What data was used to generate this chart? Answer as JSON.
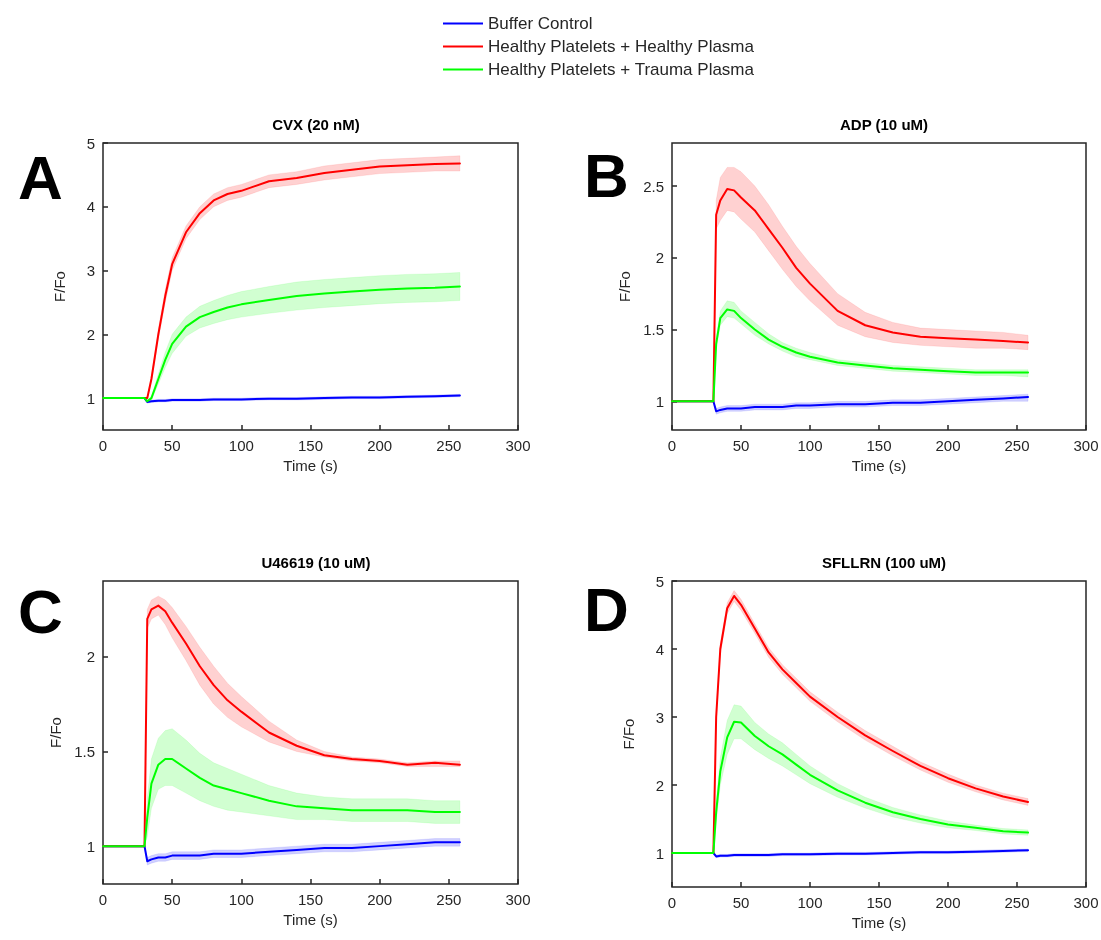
{
  "chart_data": [
    {
      "type": "line",
      "title": "CVX (20 nM)",
      "xlabel": "Time (s)",
      "ylabel": "F/Fo",
      "annotations": [
        "A"
      ],
      "legend": "top",
      "xlim": [
        0,
        300
      ],
      "xticks": [
        0,
        50,
        100,
        150,
        200,
        250,
        300
      ],
      "ylim": [
        0.5,
        5
      ],
      "yticks": [
        1,
        2,
        3,
        4,
        5
      ],
      "x": [
        0,
        30,
        32,
        35,
        40,
        45,
        50,
        60,
        70,
        80,
        90,
        100,
        120,
        140,
        160,
        180,
        200,
        220,
        240,
        258
      ],
      "series": [
        {
          "name": "Buffer Control",
          "color": "#0000ff",
          "values": [
            1,
            1,
            0.94,
            0.95,
            0.96,
            0.96,
            0.97,
            0.97,
            0.97,
            0.98,
            0.98,
            0.98,
            0.99,
            0.99,
            1.0,
            1.01,
            1.01,
            1.02,
            1.03,
            1.04
          ],
          "lower": [
            1,
            1,
            0.92,
            0.93,
            0.94,
            0.94,
            0.95,
            0.95,
            0.95,
            0.96,
            0.96,
            0.96,
            0.97,
            0.97,
            0.98,
            0.99,
            0.99,
            1.0,
            1.01,
            1.02
          ],
          "upper": [
            1,
            1,
            0.96,
            0.97,
            0.98,
            0.98,
            0.99,
            0.99,
            0.99,
            1.0,
            1.0,
            1.0,
            1.01,
            1.01,
            1.02,
            1.03,
            1.03,
            1.04,
            1.05,
            1.06
          ]
        },
        {
          "name": "Healthy Platelets + Healthy Plasma",
          "color": "#ff0000",
          "values": [
            1,
            1,
            1.0,
            1.3,
            2.0,
            2.6,
            3.1,
            3.6,
            3.9,
            4.1,
            4.2,
            4.25,
            4.4,
            4.45,
            4.53,
            4.58,
            4.63,
            4.65,
            4.67,
            4.68
          ],
          "lower": [
            1,
            1,
            0.98,
            1.25,
            1.92,
            2.5,
            3.0,
            3.5,
            3.8,
            4.0,
            4.1,
            4.15,
            4.3,
            4.35,
            4.42,
            4.47,
            4.52,
            4.54,
            4.56,
            4.56
          ],
          "upper": [
            1,
            1,
            1.02,
            1.35,
            2.08,
            2.7,
            3.2,
            3.7,
            4.0,
            4.2,
            4.3,
            4.35,
            4.5,
            4.55,
            4.64,
            4.69,
            4.74,
            4.76,
            4.78,
            4.8
          ]
        },
        {
          "name": "Healthy Platelets + Trauma Plasma",
          "color": "#00ff00",
          "values": [
            1,
            1,
            0.95,
            1.0,
            1.3,
            1.6,
            1.85,
            2.12,
            2.27,
            2.35,
            2.42,
            2.47,
            2.54,
            2.6,
            2.64,
            2.67,
            2.7,
            2.72,
            2.73,
            2.75
          ],
          "lower": [
            1,
            1,
            0.93,
            0.97,
            1.22,
            1.48,
            1.7,
            1.97,
            2.1,
            2.17,
            2.23,
            2.27,
            2.33,
            2.38,
            2.42,
            2.45,
            2.48,
            2.5,
            2.51,
            2.53
          ],
          "upper": [
            1,
            1,
            0.97,
            1.03,
            1.38,
            1.72,
            2.0,
            2.27,
            2.44,
            2.53,
            2.61,
            2.67,
            2.75,
            2.82,
            2.86,
            2.89,
            2.92,
            2.94,
            2.95,
            2.97
          ]
        }
      ]
    },
    {
      "type": "line",
      "title": "ADP (10 uM)",
      "xlabel": "Time (s)",
      "ylabel": "F/Fo",
      "annotations": [
        "B"
      ],
      "xlim": [
        0,
        300
      ],
      "xticks": [
        0,
        50,
        100,
        150,
        200,
        250,
        300
      ],
      "ylim": [
        0.8,
        2.8
      ],
      "yticks": [
        1,
        1.5,
        2,
        2.5
      ],
      "x": [
        0,
        30,
        32,
        35,
        40,
        45,
        50,
        60,
        70,
        80,
        90,
        100,
        120,
        140,
        160,
        180,
        200,
        220,
        240,
        258
      ],
      "series": [
        {
          "color": "#0000ff",
          "values": [
            1,
            1,
            0.93,
            0.94,
            0.95,
            0.95,
            0.95,
            0.96,
            0.96,
            0.96,
            0.97,
            0.97,
            0.98,
            0.98,
            0.99,
            0.99,
            1.0,
            1.01,
            1.02,
            1.03
          ],
          "lower": [
            1,
            1,
            0.91,
            0.92,
            0.93,
            0.93,
            0.93,
            0.94,
            0.94,
            0.94,
            0.95,
            0.95,
            0.96,
            0.96,
            0.97,
            0.97,
            0.98,
            0.99,
            1.0,
            1.0
          ],
          "upper": [
            1,
            1,
            0.95,
            0.96,
            0.97,
            0.97,
            0.97,
            0.98,
            0.98,
            0.98,
            0.99,
            0.99,
            1.0,
            1.0,
            1.01,
            1.01,
            1.02,
            1.03,
            1.04,
            1.05
          ]
        },
        {
          "color": "#ff0000",
          "values": [
            1,
            1,
            2.3,
            2.4,
            2.48,
            2.47,
            2.42,
            2.33,
            2.2,
            2.07,
            1.93,
            1.82,
            1.63,
            1.53,
            1.48,
            1.45,
            1.44,
            1.43,
            1.42,
            1.41
          ],
          "lower": [
            1,
            1,
            2.2,
            2.26,
            2.33,
            2.32,
            2.27,
            2.18,
            2.05,
            1.92,
            1.8,
            1.7,
            1.53,
            1.45,
            1.41,
            1.39,
            1.38,
            1.37,
            1.37,
            1.36
          ],
          "upper": [
            1,
            1,
            2.4,
            2.56,
            2.63,
            2.63,
            2.6,
            2.5,
            2.37,
            2.22,
            2.08,
            1.96,
            1.75,
            1.62,
            1.55,
            1.51,
            1.5,
            1.49,
            1.48,
            1.46
          ]
        },
        {
          "color": "#00ff00",
          "values": [
            1,
            1,
            1.4,
            1.58,
            1.64,
            1.63,
            1.58,
            1.5,
            1.43,
            1.38,
            1.34,
            1.31,
            1.27,
            1.25,
            1.23,
            1.22,
            1.21,
            1.2,
            1.2,
            1.2
          ],
          "lower": [
            1,
            1,
            1.36,
            1.53,
            1.59,
            1.58,
            1.54,
            1.46,
            1.4,
            1.35,
            1.31,
            1.29,
            1.25,
            1.23,
            1.21,
            1.2,
            1.19,
            1.18,
            1.18,
            1.17
          ],
          "upper": [
            1,
            1,
            1.44,
            1.63,
            1.7,
            1.69,
            1.63,
            1.55,
            1.47,
            1.41,
            1.37,
            1.34,
            1.29,
            1.27,
            1.25,
            1.24,
            1.23,
            1.22,
            1.22,
            1.22
          ]
        }
      ]
    },
    {
      "type": "line",
      "title": "U46619 (10 uM)",
      "xlabel": "Time (s)",
      "ylabel": "F/Fo",
      "annotations": [
        "C"
      ],
      "xlim": [
        0,
        300
      ],
      "xticks": [
        0,
        50,
        100,
        150,
        200,
        250,
        300
      ],
      "ylim": [
        0.8,
        2.4
      ],
      "yticks": [
        1,
        1.5,
        2
      ],
      "x": [
        0,
        30,
        32,
        35,
        40,
        45,
        50,
        60,
        70,
        80,
        90,
        100,
        120,
        140,
        160,
        180,
        200,
        220,
        240,
        258
      ],
      "series": [
        {
          "color": "#0000ff",
          "values": [
            1,
            1,
            0.92,
            0.93,
            0.94,
            0.94,
            0.95,
            0.95,
            0.95,
            0.96,
            0.96,
            0.96,
            0.97,
            0.98,
            0.99,
            0.99,
            1.0,
            1.01,
            1.02,
            1.02
          ],
          "lower": [
            1,
            1,
            0.9,
            0.91,
            0.92,
            0.92,
            0.93,
            0.93,
            0.93,
            0.94,
            0.94,
            0.94,
            0.95,
            0.96,
            0.97,
            0.97,
            0.98,
            0.99,
            1.0,
            1.0
          ],
          "upper": [
            1,
            1,
            0.94,
            0.95,
            0.96,
            0.96,
            0.97,
            0.97,
            0.97,
            0.98,
            0.98,
            0.98,
            0.99,
            1.0,
            1.01,
            1.01,
            1.02,
            1.03,
            1.04,
            1.04
          ]
        },
        {
          "color": "#ff0000",
          "values": [
            1,
            1,
            2.2,
            2.25,
            2.27,
            2.24,
            2.18,
            2.07,
            1.95,
            1.85,
            1.77,
            1.71,
            1.6,
            1.53,
            1.48,
            1.46,
            1.45,
            1.43,
            1.44,
            1.43
          ],
          "lower": [
            1,
            1,
            2.15,
            2.2,
            2.22,
            2.17,
            2.1,
            1.98,
            1.85,
            1.75,
            1.68,
            1.63,
            1.55,
            1.5,
            1.47,
            1.45,
            1.44,
            1.42,
            1.42,
            1.42
          ],
          "upper": [
            1,
            1,
            2.25,
            2.3,
            2.32,
            2.3,
            2.26,
            2.16,
            2.05,
            1.95,
            1.86,
            1.79,
            1.66,
            1.56,
            1.5,
            1.47,
            1.46,
            1.44,
            1.45,
            1.45
          ]
        },
        {
          "color": "#00ff00",
          "values": [
            1,
            1,
            1.15,
            1.33,
            1.43,
            1.46,
            1.46,
            1.41,
            1.36,
            1.32,
            1.3,
            1.28,
            1.24,
            1.21,
            1.2,
            1.19,
            1.19,
            1.19,
            1.18,
            1.18
          ],
          "lower": [
            1,
            1,
            1.05,
            1.2,
            1.3,
            1.32,
            1.32,
            1.28,
            1.24,
            1.21,
            1.19,
            1.18,
            1.16,
            1.14,
            1.14,
            1.13,
            1.13,
            1.13,
            1.12,
            1.12
          ],
          "upper": [
            1,
            1,
            1.25,
            1.46,
            1.57,
            1.61,
            1.62,
            1.56,
            1.49,
            1.44,
            1.41,
            1.38,
            1.32,
            1.28,
            1.26,
            1.25,
            1.25,
            1.25,
            1.24,
            1.24
          ]
        }
      ]
    },
    {
      "type": "line",
      "title": "SFLLRN (100 uM)",
      "xlabel": "Time (s)",
      "ylabel": "F/Fo",
      "annotations": [
        "D"
      ],
      "xlim": [
        0,
        300
      ],
      "xticks": [
        0,
        50,
        100,
        150,
        200,
        250,
        300
      ],
      "ylim": [
        0.5,
        5
      ],
      "yticks": [
        1,
        2,
        3,
        4,
        5
      ],
      "x": [
        0,
        30,
        32,
        35,
        40,
        45,
        50,
        60,
        70,
        80,
        90,
        100,
        120,
        140,
        160,
        180,
        200,
        220,
        240,
        258
      ],
      "series": [
        {
          "color": "#0000ff",
          "values": [
            1,
            1,
            0.95,
            0.96,
            0.96,
            0.97,
            0.97,
            0.97,
            0.97,
            0.98,
            0.98,
            0.98,
            0.99,
            0.99,
            1.0,
            1.01,
            1.01,
            1.02,
            1.03,
            1.04
          ],
          "lower": [
            1,
            1,
            0.93,
            0.94,
            0.94,
            0.95,
            0.95,
            0.95,
            0.95,
            0.96,
            0.96,
            0.96,
            0.97,
            0.97,
            0.98,
            0.99,
            0.99,
            1.0,
            1.01,
            1.02
          ],
          "upper": [
            1,
            1,
            0.97,
            0.98,
            0.98,
            0.99,
            0.99,
            0.99,
            0.99,
            1.0,
            1.0,
            1.0,
            1.01,
            1.01,
            1.02,
            1.03,
            1.03,
            1.04,
            1.05,
            1.06
          ]
        },
        {
          "color": "#ff0000",
          "values": [
            1,
            1,
            3.0,
            4.0,
            4.6,
            4.78,
            4.65,
            4.3,
            3.95,
            3.7,
            3.5,
            3.3,
            3.0,
            2.73,
            2.5,
            2.28,
            2.1,
            1.95,
            1.83,
            1.75
          ],
          "lower": [
            1,
            1,
            2.93,
            3.92,
            4.52,
            4.7,
            4.57,
            4.23,
            3.88,
            3.63,
            3.43,
            3.23,
            2.93,
            2.66,
            2.43,
            2.22,
            2.04,
            1.9,
            1.78,
            1.7
          ],
          "upper": [
            1,
            1,
            3.07,
            4.08,
            4.68,
            4.86,
            4.73,
            4.37,
            4.02,
            3.77,
            3.57,
            3.37,
            3.07,
            2.8,
            2.57,
            2.34,
            2.16,
            2.0,
            1.88,
            1.8
          ]
        },
        {
          "color": "#00ff00",
          "values": [
            1,
            1,
            1.6,
            2.2,
            2.7,
            2.93,
            2.92,
            2.72,
            2.57,
            2.45,
            2.3,
            2.15,
            1.92,
            1.74,
            1.6,
            1.5,
            1.42,
            1.37,
            1.32,
            1.3
          ],
          "lower": [
            1,
            1,
            1.45,
            2.0,
            2.45,
            2.68,
            2.68,
            2.52,
            2.39,
            2.28,
            2.15,
            2.02,
            1.82,
            1.66,
            1.53,
            1.44,
            1.37,
            1.33,
            1.28,
            1.26
          ],
          "upper": [
            1,
            1,
            1.75,
            2.4,
            2.95,
            3.18,
            3.16,
            2.92,
            2.75,
            2.62,
            2.45,
            2.28,
            2.02,
            1.82,
            1.67,
            1.56,
            1.47,
            1.41,
            1.36,
            1.34
          ]
        }
      ]
    }
  ]
}
